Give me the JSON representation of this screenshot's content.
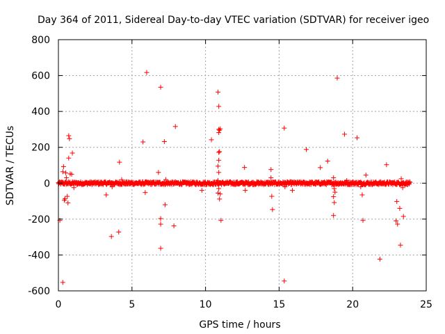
{
  "chart_data": {
    "type": "scatter",
    "title": "Day 364 of 2011, Sidereal Day-to-day VTEC variation (SDTVAR) for receiver igeo",
    "xlabel": "GPS time / hours",
    "ylabel": "SDTVAR / TECUs",
    "xlim": [
      0,
      25
    ],
    "ylim": [
      -600,
      800
    ],
    "xticks": [
      0,
      5,
      10,
      15,
      20,
      25
    ],
    "yticks": [
      -600,
      -400,
      -200,
      0,
      200,
      400,
      600,
      800
    ],
    "grid": true,
    "marker": "+",
    "color": "#ff0000",
    "band": {
      "x_start": 0.0,
      "x_end": 23.9,
      "y_spread": 8,
      "count": 900
    },
    "points": [
      [
        0.1,
        -207
      ],
      [
        0.3,
        -553
      ],
      [
        0.3,
        64
      ],
      [
        0.35,
        92
      ],
      [
        0.4,
        -95
      ],
      [
        0.45,
        -87
      ],
      [
        0.5,
        58
      ],
      [
        0.55,
        30
      ],
      [
        0.6,
        -73
      ],
      [
        0.65,
        -110
      ],
      [
        0.7,
        265
      ],
      [
        0.75,
        248
      ],
      [
        0.7,
        140
      ],
      [
        0.8,
        52
      ],
      [
        0.9,
        50
      ],
      [
        0.95,
        168
      ],
      [
        1.05,
        -25
      ],
      [
        3.25,
        -65
      ],
      [
        3.6,
        -297
      ],
      [
        3.65,
        -20
      ],
      [
        4.1,
        -272
      ],
      [
        4.15,
        117
      ],
      [
        4.3,
        20
      ],
      [
        5.75,
        230
      ],
      [
        5.9,
        -52
      ],
      [
        6.0,
        617
      ],
      [
        6.8,
        60
      ],
      [
        6.95,
        535
      ],
      [
        6.95,
        -197
      ],
      [
        6.95,
        -228
      ],
      [
        6.95,
        -363
      ],
      [
        7.2,
        232
      ],
      [
        7.25,
        -120
      ],
      [
        7.3,
        20
      ],
      [
        7.85,
        -238
      ],
      [
        7.95,
        316
      ],
      [
        9.75,
        -40
      ],
      [
        10.4,
        242
      ],
      [
        10.85,
        508
      ],
      [
        10.9,
        428
      ],
      [
        10.9,
        300
      ],
      [
        10.9,
        282
      ],
      [
        10.95,
        295
      ],
      [
        11.0,
        303
      ],
      [
        10.9,
        172
      ],
      [
        10.95,
        176
      ],
      [
        10.9,
        128
      ],
      [
        10.85,
        95
      ],
      [
        10.9,
        60
      ],
      [
        10.85,
        15
      ],
      [
        10.9,
        -30
      ],
      [
        10.85,
        -55
      ],
      [
        10.95,
        -88
      ],
      [
        11.0,
        -60
      ],
      [
        11.05,
        -207
      ],
      [
        12.65,
        88
      ],
      [
        12.7,
        -40
      ],
      [
        14.45,
        76
      ],
      [
        14.45,
        30
      ],
      [
        14.5,
        -73
      ],
      [
        14.55,
        -147
      ],
      [
        15.35,
        307
      ],
      [
        15.35,
        -545
      ],
      [
        15.4,
        -20
      ],
      [
        15.9,
        -40
      ],
      [
        16.85,
        188
      ],
      [
        17.8,
        87
      ],
      [
        18.3,
        123
      ],
      [
        18.7,
        30
      ],
      [
        18.75,
        -30
      ],
      [
        18.8,
        -50
      ],
      [
        18.7,
        -75
      ],
      [
        18.75,
        -108
      ],
      [
        18.7,
        -180
      ],
      [
        18.95,
        586
      ],
      [
        19.45,
        273
      ],
      [
        19.6,
        15
      ],
      [
        20.3,
        253
      ],
      [
        20.55,
        -20
      ],
      [
        20.65,
        -65
      ],
      [
        20.7,
        -207
      ],
      [
        20.9,
        45
      ],
      [
        21.85,
        -423
      ],
      [
        22.3,
        103
      ],
      [
        22.95,
        -210
      ],
      [
        23.0,
        -102
      ],
      [
        23.05,
        -228
      ],
      [
        23.2,
        -140
      ],
      [
        23.25,
        -345
      ],
      [
        23.45,
        -185
      ],
      [
        23.3,
        25
      ],
      [
        23.4,
        -25
      ]
    ]
  }
}
